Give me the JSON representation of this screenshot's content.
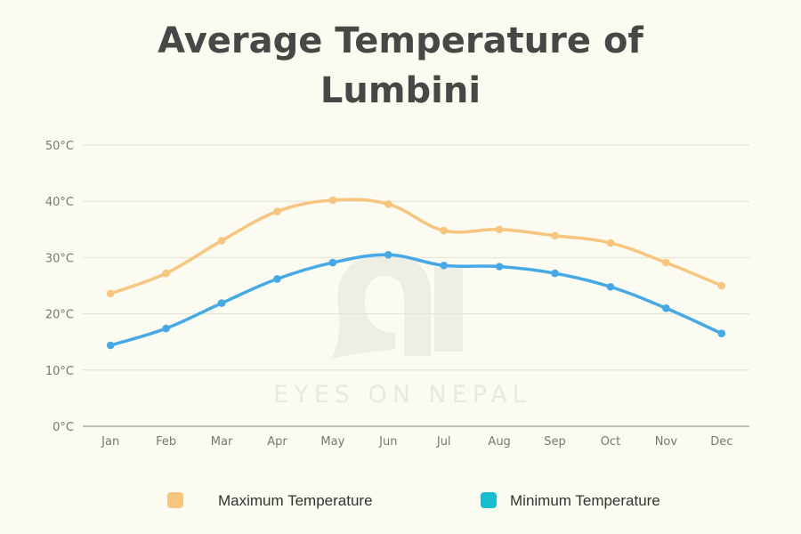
{
  "chart_data": {
    "type": "line",
    "title": "Average Temperature of Lumbini",
    "xlabel": "",
    "ylabel": "",
    "categories": [
      "Jan",
      "Feb",
      "Mar",
      "Apr",
      "May",
      "Jun",
      "Jul",
      "Aug",
      "Sep",
      "Oct",
      "Nov",
      "Dec"
    ],
    "yticks": [
      "0°C",
      "10°C",
      "20°C",
      "30°C",
      "40°C",
      "50°C"
    ],
    "ylim": [
      0,
      50
    ],
    "grid": true,
    "legend_position": "bottom",
    "series": [
      {
        "name": "Maximum Temperature",
        "color": "#f7c57d",
        "values": [
          23.6,
          27.2,
          33.0,
          38.2,
          40.2,
          39.5,
          34.8,
          35.0,
          33.9,
          32.6,
          29.1,
          25.0
        ]
      },
      {
        "name": "Minimum Temperature",
        "color": "#45a9e6",
        "legend_color": "#17becf",
        "values": [
          14.4,
          17.4,
          21.9,
          26.2,
          29.1,
          30.5,
          28.6,
          28.4,
          27.2,
          24.8,
          21.0,
          16.5
        ]
      }
    ]
  },
  "watermark": {
    "text": "EYES ON NEPAL"
  }
}
